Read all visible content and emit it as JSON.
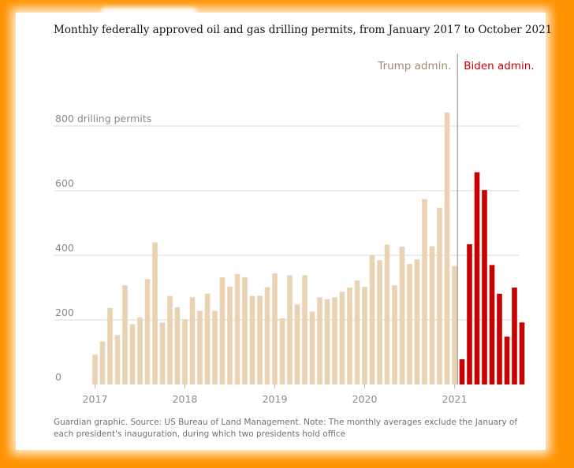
{
  "title": "Monthly federally approved oil and gas drilling permits, from January 2017 to October 2021",
  "source_note": "Guardian graphic. Source: US Bureau of Land Management. Note: The monthly averages exclude the January of each president's inauguration, during which two presidents hold office",
  "colors": {
    "background": "#ff9200",
    "trump": "#ead3b3",
    "biden": "#c70000",
    "trump_label": "#9b8d6b",
    "biden_label": "#c70000",
    "grid": "#d9d9d9",
    "divider": "#9a9a9a"
  },
  "chart_data": {
    "type": "bar",
    "title": "Monthly federally approved oil and gas drilling permits, from January 2017 to October 2021",
    "xlabel": "",
    "ylabel": "drilling permits",
    "ylim": [
      0,
      800
    ],
    "yticks": [
      {
        "value": 800,
        "label": "800 drilling permits"
      },
      {
        "value": 600,
        "label": "600"
      },
      {
        "value": 400,
        "label": "400"
      },
      {
        "value": 200,
        "label": "200"
      },
      {
        "value": 0,
        "label": "0"
      }
    ],
    "xticks": [
      {
        "index": 0,
        "label": "2017"
      },
      {
        "index": 12,
        "label": "2018"
      },
      {
        "index": 24,
        "label": "2019"
      },
      {
        "index": 36,
        "label": "2020"
      },
      {
        "index": 48,
        "label": "2021"
      }
    ],
    "divider_index": 48.5,
    "annotations": {
      "trump": "Trump admin.",
      "biden": "Biden admin."
    },
    "series": [
      {
        "name": "Trump admin.",
        "start_index": 0,
        "values": [
          92,
          133,
          237,
          153,
          307,
          187,
          208,
          326,
          440,
          192,
          274,
          239,
          202,
          270,
          228,
          281,
          228,
          332,
          303,
          342,
          332,
          274,
          275,
          301,
          344,
          205,
          338,
          248,
          338,
          226,
          270,
          264,
          270,
          287,
          300,
          322,
          302,
          400,
          385,
          433,
          307,
          427,
          373,
          387,
          574,
          428,
          547,
          842,
          367
        ]
      },
      {
        "name": "Biden admin.",
        "start_index": 49,
        "values": [
          78,
          434,
          657,
          602,
          370,
          281,
          148,
          300,
          192
        ]
      }
    ]
  }
}
